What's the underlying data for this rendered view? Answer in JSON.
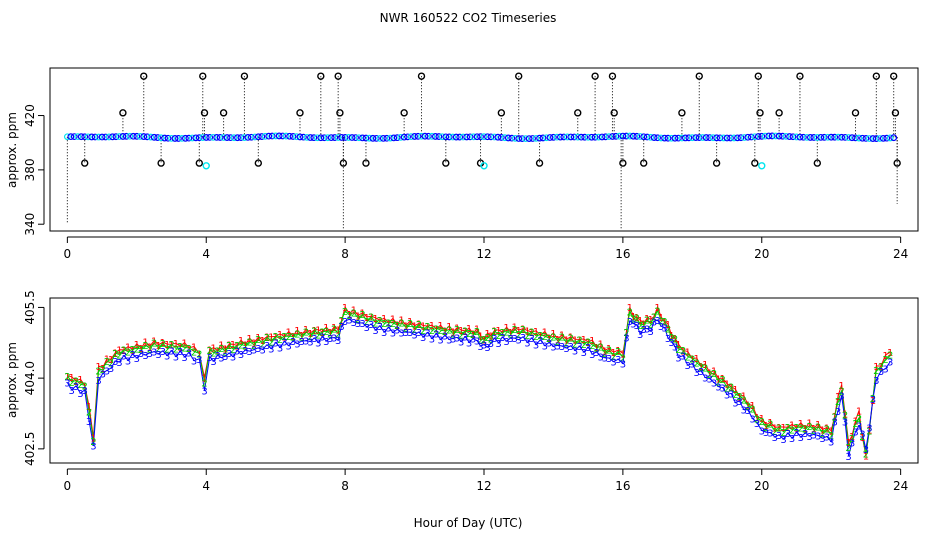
{
  "title": "NWR  160522  CO2 Timeseries",
  "xlabel": "Hour of Day (UTC)",
  "colors": {
    "flag_o": "#000000",
    "flag_cyan": "#00e5ee",
    "main_series": "#0000ff",
    "series_1": "#ff0000",
    "series_2": "#00cc00",
    "series_3": "#0000ff",
    "axis": "#000000"
  },
  "chart_data": [
    {
      "type": "scatter",
      "panel": "top",
      "ylabel": "approx. ppm",
      "xlim": [
        -0.5,
        24.5
      ],
      "ylim": [
        335,
        455
      ],
      "x_ticks": [
        0,
        4,
        8,
        12,
        16,
        20,
        24
      ],
      "y_ticks": [
        340,
        380,
        420
      ],
      "y_tick_labels": [
        "340",
        "380",
        "420"
      ],
      "baseline": 404,
      "flagged_high_hours": [
        1.6,
        2.2,
        3.9,
        3.95,
        4.5,
        5.1,
        6.7,
        7.3,
        7.8,
        7.85,
        9.7,
        10.2,
        12.5,
        13.0,
        14.7,
        15.2,
        15.7,
        15.75,
        17.7,
        18.2,
        19.9,
        19.95,
        20.5,
        21.1,
        22.7,
        23.3,
        23.8,
        23.85
      ],
      "flagged_high_values": [
        422,
        449,
        449,
        422,
        422,
        449,
        422,
        449,
        449,
        422,
        422,
        449,
        422,
        449,
        422,
        449,
        449,
        422,
        422,
        449,
        449,
        422,
        422,
        449,
        422,
        449,
        449,
        422
      ],
      "flagged_low_hours": [
        0.5,
        2.7,
        3.8,
        5.5,
        7.95,
        8.6,
        10.9,
        11.9,
        13.6,
        16.0,
        16.6,
        18.7,
        19.8,
        21.6,
        23.9
      ],
      "flagged_low_values": [
        385,
        385,
        385,
        385,
        385,
        385,
        385,
        385,
        385,
        385,
        385,
        385,
        385,
        385,
        385
      ],
      "flagged_cyan_hours": [
        4.0,
        12.0,
        20.0
      ],
      "flagged_cyan_values": [
        383,
        383,
        383
      ],
      "dotted_drops": [
        {
          "hour": 0.0,
          "min": 340
        },
        {
          "hour": 7.95,
          "min": 336
        },
        {
          "hour": 15.95,
          "min": 336
        },
        {
          "hour": 23.9,
          "min": 355
        }
      ]
    },
    {
      "type": "line",
      "panel": "bottom",
      "ylabel": "approx. ppm",
      "xlim": [
        -0.5,
        24.5
      ],
      "ylim": [
        402.2,
        405.7
      ],
      "x_ticks": [
        0,
        4,
        8,
        12,
        16,
        20,
        24
      ],
      "y_ticks": [
        402.5,
        404.0,
        405.5
      ],
      "y_tick_labels": [
        "402.5",
        "404.0",
        "405.5"
      ],
      "series_markers": [
        "1",
        "2",
        "3"
      ],
      "x": [
        0.0,
        0.5,
        0.75,
        0.9,
        1.5,
        2.5,
        3.5,
        3.8,
        3.95,
        4.1,
        5.0,
        6.0,
        7.0,
        7.8,
        8.0,
        8.5,
        9.0,
        10.0,
        11.0,
        11.8,
        12.0,
        12.3,
        13.0,
        14.0,
        15.0,
        15.6,
        16.0,
        16.2,
        16.5,
        16.8,
        17.0,
        17.3,
        17.6,
        18.0,
        19.0,
        19.6,
        20.0,
        20.5,
        21.0,
        21.5,
        22.0,
        22.3,
        22.5,
        22.8,
        23.0,
        23.3,
        23.7
      ],
      "series": [
        {
          "name": "1",
          "values": [
            404.05,
            403.9,
            402.8,
            404.2,
            404.6,
            404.75,
            404.7,
            404.55,
            404.0,
            404.6,
            404.75,
            404.9,
            405.0,
            405.05,
            405.45,
            405.35,
            405.25,
            405.15,
            405.05,
            405.0,
            404.85,
            405.0,
            405.05,
            404.9,
            404.8,
            404.6,
            404.55,
            405.45,
            405.2,
            405.25,
            405.45,
            405.1,
            404.7,
            404.45,
            403.9,
            403.5,
            403.1,
            402.95,
            403.0,
            403.0,
            402.9,
            403.9,
            402.6,
            403.3,
            402.3,
            404.2,
            404.55
          ]
        },
        {
          "name": "2",
          "values": [
            404.0,
            403.85,
            402.7,
            404.15,
            404.55,
            404.7,
            404.65,
            404.5,
            403.95,
            404.55,
            404.7,
            404.85,
            404.95,
            405.0,
            405.4,
            405.3,
            405.2,
            405.1,
            405.0,
            404.95,
            404.8,
            404.95,
            405.0,
            404.85,
            404.75,
            404.55,
            404.5,
            405.4,
            405.15,
            405.2,
            405.4,
            405.05,
            404.65,
            404.4,
            403.85,
            403.45,
            403.05,
            402.9,
            402.95,
            402.95,
            402.85,
            403.8,
            402.55,
            403.2,
            402.35,
            404.15,
            404.5
          ]
        },
        {
          "name": "3",
          "values": [
            403.85,
            403.7,
            402.55,
            404.0,
            404.4,
            404.55,
            404.5,
            404.35,
            403.8,
            404.4,
            404.55,
            404.7,
            404.8,
            404.85,
            405.25,
            405.15,
            405.05,
            404.95,
            404.85,
            404.8,
            404.65,
            404.8,
            404.85,
            404.7,
            404.6,
            404.4,
            404.35,
            405.25,
            405.0,
            405.05,
            405.25,
            404.9,
            404.5,
            404.25,
            403.7,
            403.3,
            402.9,
            402.75,
            402.8,
            402.8,
            402.7,
            403.65,
            402.4,
            403.05,
            402.5,
            404.0,
            404.35
          ]
        }
      ]
    }
  ]
}
